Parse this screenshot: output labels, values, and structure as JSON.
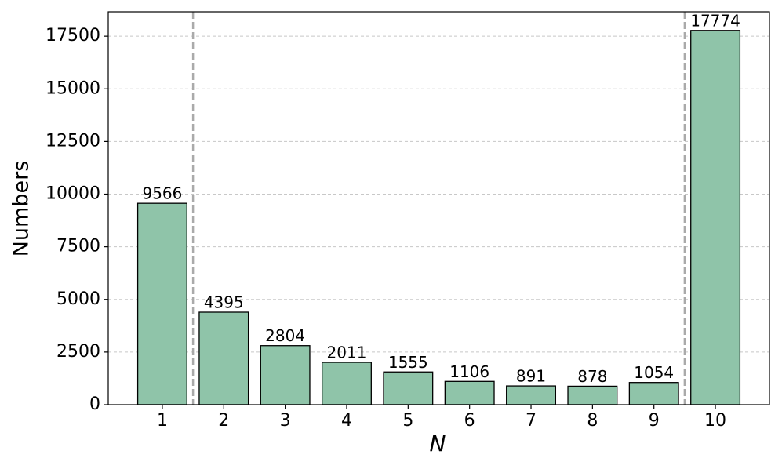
{
  "chart_data": {
    "type": "bar",
    "xlabel": "N",
    "ylabel": "Numbers",
    "x": [
      1,
      2,
      3,
      4,
      5,
      6,
      7,
      8,
      9,
      10
    ],
    "values": [
      9566,
      4395,
      2804,
      2011,
      1555,
      1106,
      891,
      878,
      1054,
      17774
    ],
    "color": "#8fc4a9",
    "edgecolor": "#000000",
    "bar_width": 0.8,
    "xlim": [
      0.12,
      10.88
    ],
    "xticks": [
      1,
      2,
      3,
      4,
      5,
      6,
      7,
      8,
      9,
      10
    ],
    "ylim": [
      0,
      18660
    ],
    "yticks": [
      0,
      2500,
      5000,
      7500,
      10000,
      12500,
      15000,
      17500
    ],
    "grid": true,
    "vlines": [
      1.5,
      9.5
    ]
  }
}
